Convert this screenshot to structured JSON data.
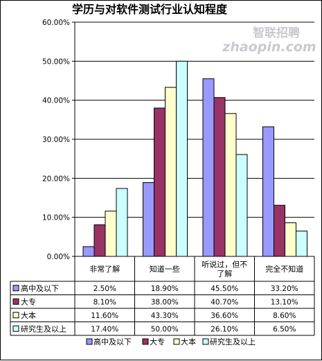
{
  "chart_data": {
    "type": "bar",
    "title": "学历与对软件测试行业认知程度",
    "categories": [
      "非常了解",
      "知道一些",
      "听说过，但不了解",
      "完全不知道"
    ],
    "category_lines": [
      [
        "非常了解"
      ],
      [
        "知道一些"
      ],
      [
        "听说过，但不",
        "了解"
      ],
      [
        "完全不知道"
      ]
    ],
    "series": [
      {
        "name": "高中及以下",
        "values": [
          2.5,
          18.9,
          45.5,
          33.2
        ],
        "color": "#9999ff"
      },
      {
        "name": "大专",
        "values": [
          8.1,
          38.0,
          40.7,
          13.1
        ],
        "color": "#993366"
      },
      {
        "name": "大本",
        "values": [
          11.6,
          43.3,
          36.6,
          8.6
        ],
        "color": "#ffffcc"
      },
      {
        "name": "研究生及以上",
        "values": [
          17.4,
          50.0,
          26.1,
          6.5
        ],
        "color": "#ccffff"
      }
    ],
    "table_values": [
      [
        "2.50%",
        "18.90%",
        "45.50%",
        "33.20%"
      ],
      [
        "8.10%",
        "38.00%",
        "40.70%",
        "13.10%"
      ],
      [
        "11.60%",
        "43.30%",
        "36.60%",
        "8.60%"
      ],
      [
        "17.40%",
        "50.00%",
        "26.10%",
        "6.50%"
      ]
    ],
    "y_ticks": [
      "0.00%",
      "10.00%",
      "20.00%",
      "30.00%",
      "40.00%",
      "50.00%",
      "60.00%"
    ],
    "ylim": [
      0,
      60
    ],
    "grid": true,
    "legend": "bottom",
    "data_table": true
  },
  "watermark": {
    "brand_cn": "智联招聘",
    "brand_en": "zhaopin.com"
  },
  "colors": {
    "plot_background": "#ffffff",
    "gridline": "#000000",
    "bar_outline": "#000000"
  }
}
